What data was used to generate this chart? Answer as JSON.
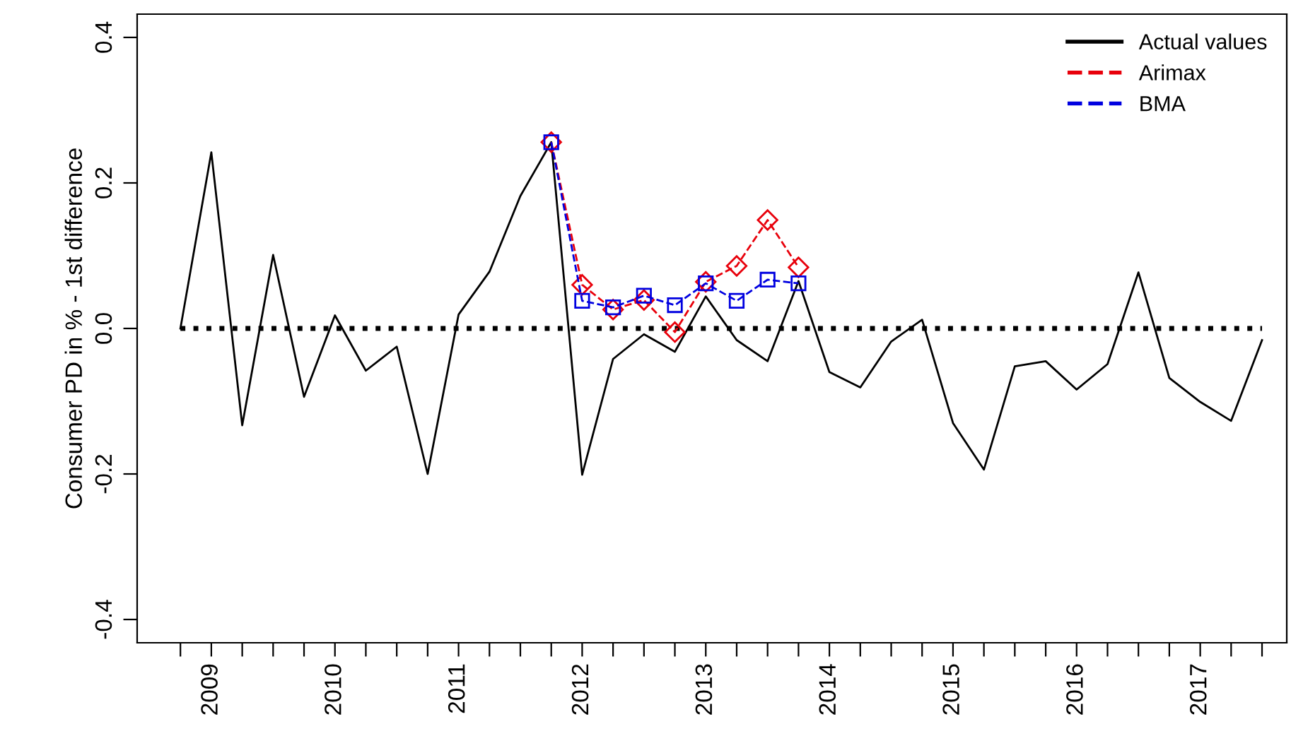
{
  "chart_data": {
    "type": "line",
    "ylabel": "Consumer PD in % - 1st difference",
    "x": [
      2008.75,
      2009,
      2009.25,
      2009.5,
      2009.75,
      2010,
      2010.25,
      2010.5,
      2010.75,
      2011,
      2011.25,
      2011.5,
      2011.75,
      2012,
      2012.25,
      2012.5,
      2012.75,
      2013,
      2013.25,
      2013.5,
      2013.75,
      2014,
      2014.25,
      2014.5,
      2014.75,
      2015,
      2015.25,
      2015.5,
      2015.75,
      2016,
      2016.25,
      2016.5,
      2016.75,
      2017,
      2017.25,
      2017.5
    ],
    "series": [
      {
        "name": "Actual values",
        "color": "#000000",
        "line_style": "solid",
        "marker": "none",
        "values": [
          0.0,
          0.242,
          -0.133,
          0.101,
          -0.094,
          0.018,
          -0.058,
          -0.025,
          -0.2,
          0.019,
          0.078,
          0.182,
          0.256,
          -0.201,
          -0.042,
          -0.008,
          -0.032,
          0.044,
          -0.016,
          -0.045,
          0.065,
          -0.06,
          -0.081,
          -0.018,
          0.012,
          -0.13,
          -0.194,
          -0.052,
          -0.045,
          -0.084,
          -0.049,
          0.077,
          -0.068,
          -0.101,
          -0.127,
          -0.016
        ]
      },
      {
        "name": "Arimax",
        "color": "#e8000b",
        "line_style": "dashed",
        "marker": "diamond",
        "x": [
          2011.75,
          2012,
          2012.25,
          2012.5,
          2012.75,
          2013,
          2013.25,
          2013.5,
          2013.75
        ],
        "values": [
          0.256,
          0.06,
          0.026,
          0.039,
          -0.005,
          0.064,
          0.086,
          0.149,
          0.084
        ]
      },
      {
        "name": "BMA",
        "color": "#0000e0",
        "line_style": "dashed",
        "marker": "square",
        "x": [
          2011.75,
          2012,
          2012.25,
          2012.5,
          2012.75,
          2013,
          2013.25,
          2013.5,
          2013.75
        ],
        "values": [
          0.256,
          0.038,
          0.029,
          0.045,
          0.032,
          0.062,
          0.038,
          0.067,
          0.062
        ]
      }
    ],
    "ref_lines": [
      {
        "axis": "y",
        "value": 0,
        "color": "#000000",
        "line_style": "dotted"
      }
    ],
    "xlim": [
      2008.4,
      2017.7
    ],
    "xticks": [
      {
        "value": 2008.75,
        "label": null
      },
      2009,
      {
        "value": 2009.25,
        "label": null
      },
      {
        "value": 2009.5,
        "label": null
      },
      {
        "value": 2009.75,
        "label": null
      },
      2010,
      {
        "value": 2010.25,
        "label": null
      },
      {
        "value": 2010.5,
        "label": null
      },
      {
        "value": 2010.75,
        "label": null
      },
      2011,
      {
        "value": 2011.25,
        "label": null
      },
      {
        "value": 2011.5,
        "label": null
      },
      {
        "value": 2011.75,
        "label": null
      },
      2012,
      {
        "value": 2012.25,
        "label": null
      },
      {
        "value": 2012.5,
        "label": null
      },
      {
        "value": 2012.75,
        "label": null
      },
      2013,
      {
        "value": 2013.25,
        "label": null
      },
      {
        "value": 2013.5,
        "label": null
      },
      {
        "value": 2013.75,
        "label": null
      },
      2014,
      {
        "value": 2014.25,
        "label": null
      },
      {
        "value": 2014.5,
        "label": null
      },
      {
        "value": 2014.75,
        "label": null
      },
      2015,
      {
        "value": 2015.25,
        "label": null
      },
      {
        "value": 2015.5,
        "label": null
      },
      {
        "value": 2015.75,
        "label": null
      },
      2016,
      {
        "value": 2016.25,
        "label": null
      },
      {
        "value": 2016.5,
        "label": null
      },
      {
        "value": 2016.75,
        "label": null
      },
      2017,
      {
        "value": 2017.25,
        "label": null
      },
      {
        "value": 2017.5,
        "label": null
      }
    ],
    "ylim": [
      -0.432,
      0.432
    ],
    "yticks": [
      {
        "value": -0.4,
        "label": "-0.4"
      },
      {
        "value": -0.2,
        "label": "-0.2"
      },
      {
        "value": 0,
        "label": "0.0"
      },
      {
        "value": 0.2,
        "label": "0.2"
      },
      {
        "value": 0.4,
        "label": "0.4"
      }
    ],
    "grid": false,
    "legend": "top right"
  }
}
